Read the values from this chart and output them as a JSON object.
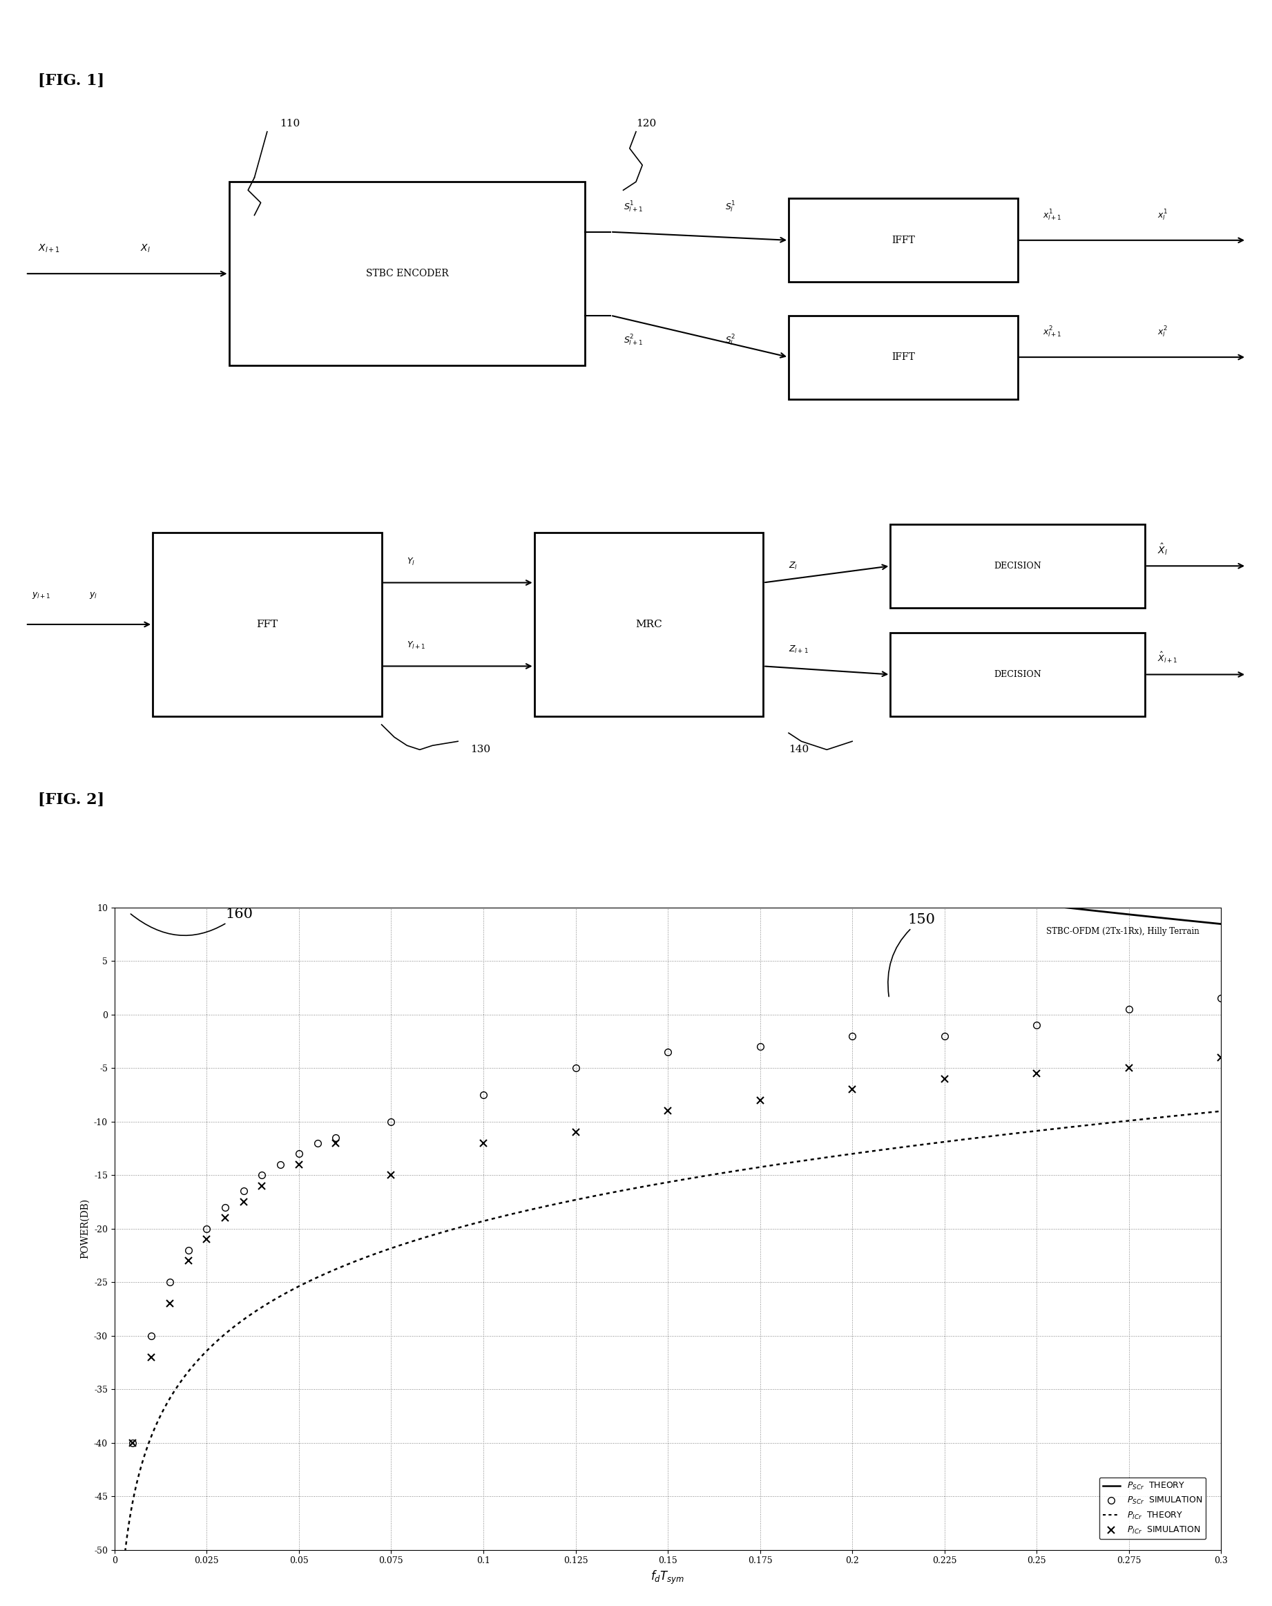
{
  "fig1_label": "[FIG. 1]",
  "fig2_label": "[FIG. 2]",
  "label_110": "110",
  "label_120": "120",
  "label_130": "130",
  "label_140": "140",
  "label_150": "150",
  "label_160": "160",
  "stbc_text": "STBC ENCODER",
  "fft_text": "FFT",
  "mrc_text": "MRC",
  "ifft_text": "IFFT",
  "decision_text": "DECISION",
  "plot_title": "STBC-OFDM (2Tx-1Rx), Hilly Terrain",
  "xlabel": "$f_d T_{sym}$",
  "ylabel": "POWER(DB)",
  "xlim": [
    0,
    0.3
  ],
  "ylim": [
    -50,
    10
  ],
  "xticks": [
    0,
    0.025,
    0.05,
    0.075,
    0.1,
    0.125,
    0.15,
    0.175,
    0.2,
    0.225,
    0.25,
    0.275,
    0.3
  ],
  "yticks": [
    -50,
    -45,
    -40,
    -35,
    -30,
    -25,
    -20,
    -15,
    -10,
    -5,
    0,
    5,
    10
  ],
  "pscr_sim_x": [
    0.005,
    0.01,
    0.015,
    0.02,
    0.025,
    0.03,
    0.035,
    0.04,
    0.045,
    0.05,
    0.055,
    0.06,
    0.075,
    0.1,
    0.125,
    0.15,
    0.175,
    0.2,
    0.225,
    0.25,
    0.275,
    0.3
  ],
  "pscr_sim_y": [
    -40,
    -30,
    -25,
    -22,
    -20,
    -18,
    -16.5,
    -15,
    -14,
    -13,
    -12,
    -11.5,
    -10,
    -7.5,
    -5,
    -3.5,
    -3,
    -2,
    -2,
    -1,
    0.5,
    1.5
  ],
  "picr_sim_x": [
    0.005,
    0.01,
    0.015,
    0.02,
    0.025,
    0.03,
    0.035,
    0.04,
    0.05,
    0.06,
    0.075,
    0.1,
    0.125,
    0.15,
    0.175,
    0.2,
    0.225,
    0.25,
    0.275,
    0.3
  ],
  "picr_sim_y": [
    -40,
    -32,
    -27,
    -23,
    -21,
    -19,
    -17.5,
    -16,
    -14,
    -12,
    -15,
    -12,
    -11,
    -9,
    -8,
    -7,
    -6,
    -5.5,
    -5,
    -4
  ]
}
